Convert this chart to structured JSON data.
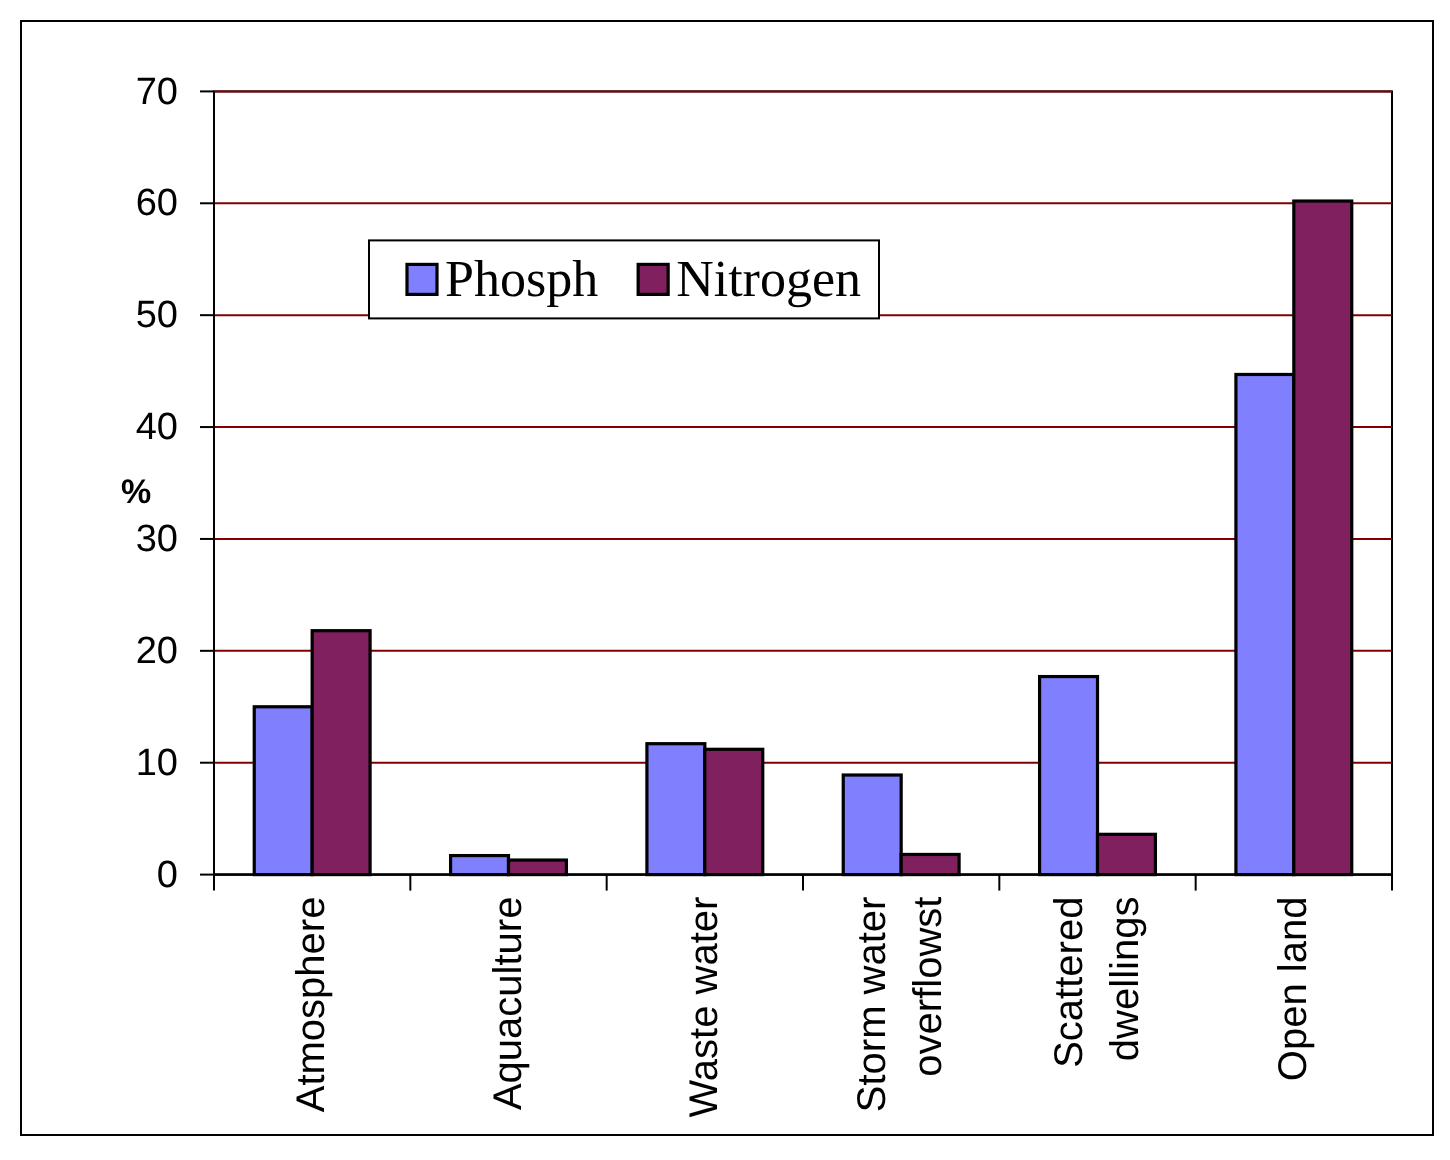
{
  "chart_data": {
    "type": "bar",
    "ylabel": "%",
    "categories": [
      "Atmosphere",
      "Aquaculture",
      "Waste water",
      "Storm water overflowst",
      "Scattered dwellings",
      "Open land"
    ],
    "series": [
      {
        "name": "Phosph",
        "color": "#8080ff",
        "values": [
          15,
          1.7,
          11.7,
          8.9,
          17.7,
          44.7
        ]
      },
      {
        "name": "Nitrogen",
        "color": "#80205f",
        "values": [
          21.8,
          1.3,
          11.2,
          1.8,
          3.6,
          60.2
        ]
      }
    ],
    "ylim": [
      0,
      70
    ],
    "yticks": [
      0,
      10,
      20,
      30,
      40,
      50,
      60,
      70
    ],
    "grid": "y",
    "legend": "top left"
  }
}
